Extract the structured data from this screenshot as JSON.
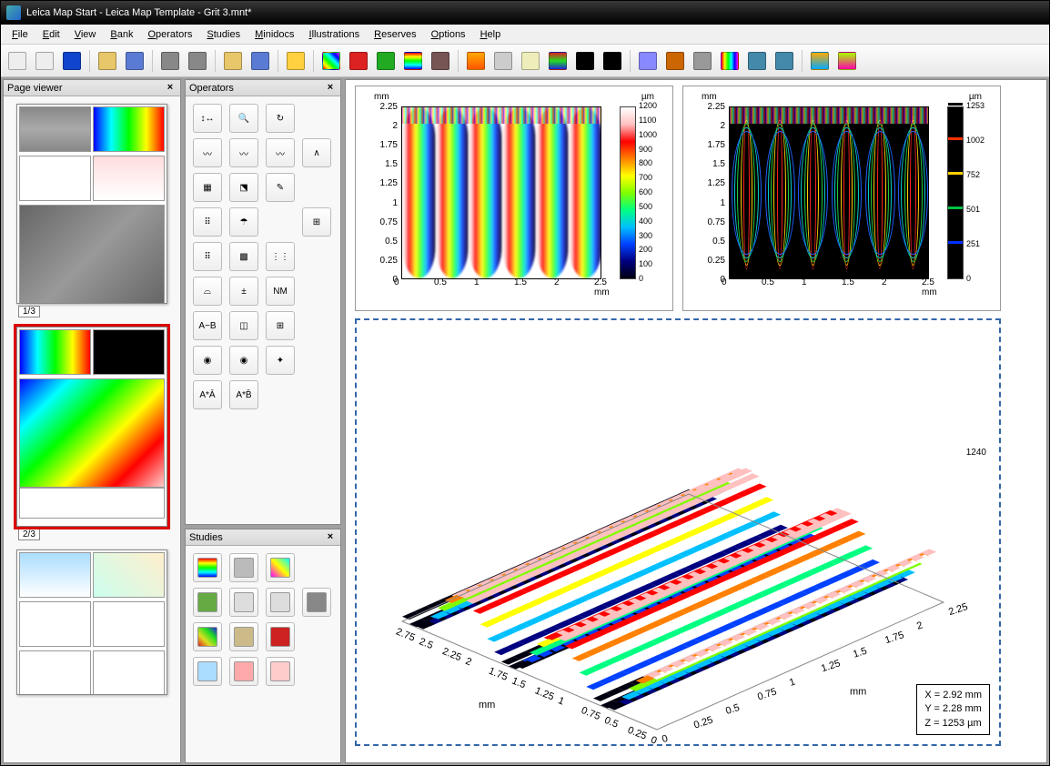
{
  "window": {
    "title": "Leica Map Start - Leica Map Template - Grit 3.mnt*"
  },
  "menu": [
    "File",
    "Edit",
    "View",
    "Bank",
    "Operators",
    "Studies",
    "Minidocs",
    "Illustrations",
    "Reserves",
    "Options",
    "Help"
  ],
  "toolbar_icons": [
    {
      "n": "new-doc",
      "c": "#eee"
    },
    {
      "n": "new-page",
      "c": "#eee"
    },
    {
      "n": "monitor",
      "c": "#14c"
    },
    null,
    {
      "n": "open",
      "c": "#e8c76a"
    },
    {
      "n": "save",
      "c": "#5a7bd4"
    },
    null,
    {
      "n": "print",
      "c": "#888"
    },
    {
      "n": "print-preview",
      "c": "#888"
    },
    null,
    {
      "n": "folder-a",
      "c": "#e8c76a"
    },
    {
      "n": "folder-b",
      "c": "#5a7bd4"
    },
    null,
    {
      "n": "help",
      "c": "#ffd040"
    },
    null,
    {
      "n": "palette",
      "c": "linear-gradient(45deg,#f00,#ff0,#0f0,#0ff,#00f,#f0f)"
    },
    {
      "n": "red-square",
      "c": "#d22"
    },
    {
      "n": "green-square",
      "c": "#2a2"
    },
    {
      "n": "rainbow-sq",
      "c": "linear-gradient(#f00,#ff0,#0f0,#0ff,#00f)"
    },
    {
      "n": "eye",
      "c": "#755"
    },
    null,
    {
      "n": "orange-sq",
      "c": "linear-gradient(#fa0,#f50)"
    },
    {
      "n": "diamond",
      "c": "#ccc"
    },
    {
      "n": "bulb",
      "c": "#eeb"
    },
    {
      "n": "3d-surf",
      "c": "linear-gradient(#d22,#2d2,#22d)"
    },
    {
      "n": "arrows-v",
      "c": "#000"
    },
    {
      "n": "crop",
      "c": "#000"
    },
    null,
    {
      "n": "gamma",
      "c": "#88f"
    },
    {
      "n": "bug",
      "c": "#c60"
    },
    {
      "n": "bars",
      "c": "#999"
    },
    {
      "n": "rainbow2",
      "c": "linear-gradient(90deg,#f00,#ff0,#0f0,#0ff,#00f,#f0f)"
    },
    {
      "n": "star",
      "c": "#48a"
    },
    {
      "n": "expand",
      "c": "#48a"
    },
    null,
    {
      "n": "tile-a",
      "c": "linear-gradient(#fa0,#0af)"
    },
    {
      "n": "tile-b",
      "c": "linear-gradient(#af0,#f0a)"
    }
  ],
  "panels": {
    "page_viewer": {
      "title": "Page viewer",
      "pages": [
        "1/3",
        "2/3",
        ""
      ]
    },
    "operators": {
      "title": "Operators",
      "items": [
        {
          "n": "scale",
          "t": "↕↔"
        },
        {
          "n": "zoom",
          "t": "🔍"
        },
        {
          "n": "rotate",
          "t": "↻"
        },
        {
          "n": "blank1",
          "t": ""
        },
        {
          "n": "wave1",
          "t": "〰"
        },
        {
          "n": "wave2",
          "t": "〰"
        },
        {
          "n": "wave3",
          "t": "〰"
        },
        {
          "n": "peak",
          "t": "∧"
        },
        {
          "n": "grid",
          "t": "▦"
        },
        {
          "n": "level",
          "t": "⬔"
        },
        {
          "n": "edit-surf",
          "t": "✎"
        },
        {
          "n": "blank2",
          "t": ""
        },
        {
          "n": "pts-a",
          "t": "⠿"
        },
        {
          "n": "mushroom",
          "t": "☂"
        },
        {
          "n": "blank3",
          "t": ""
        },
        {
          "n": "ruler",
          "t": "⊞"
        },
        {
          "n": "pts-b",
          "t": "⠿"
        },
        {
          "n": "texture",
          "t": "▩"
        },
        {
          "n": "dots",
          "t": "⋮⋮"
        },
        {
          "n": "blank4",
          "t": ""
        },
        {
          "n": "filter",
          "t": "⌓"
        },
        {
          "n": "plusminus",
          "t": "±"
        },
        {
          "n": "nm",
          "t": "NM"
        },
        {
          "n": "blank5",
          "t": ""
        },
        {
          "n": "a-minus-b",
          "t": "A−B"
        },
        {
          "n": "overlay",
          "t": "◫"
        },
        {
          "n": "tiles",
          "t": "⊞"
        },
        {
          "n": "blank6",
          "t": ""
        },
        {
          "n": "spot1",
          "t": "◉"
        },
        {
          "n": "spot2",
          "t": "◉"
        },
        {
          "n": "spot3",
          "t": "✦"
        },
        {
          "n": "blank7",
          "t": ""
        },
        {
          "n": "a-star-a",
          "t": "A*Ā"
        },
        {
          "n": "a-star-b",
          "t": "A*B̄"
        },
        {
          "n": "blank8",
          "t": ""
        },
        {
          "n": "blank9",
          "t": ""
        }
      ]
    },
    "studies": {
      "title": "Studies",
      "items": [
        {
          "n": "surf-rainbow",
          "c": "linear-gradient(#f00,#ff0,#0f0,#0ff,#00f)"
        },
        {
          "n": "grey3d",
          "c": "#bbb"
        },
        {
          "n": "contour",
          "c": "linear-gradient(45deg,#f0f,#ff0,#0ff)"
        },
        {
          "n": "blank",
          "c": "#fff"
        },
        {
          "n": "tree",
          "c": "#6a4"
        },
        {
          "n": "ruler2",
          "c": "#ddd"
        },
        {
          "n": "compass",
          "c": "#ddd"
        },
        {
          "n": "calc",
          "c": "#888"
        },
        {
          "n": "patches",
          "c": "linear-gradient(45deg,#d22,#dd2,#2d2,#22d)"
        },
        {
          "n": "beads",
          "c": "#cb8"
        },
        {
          "n": "net",
          "c": "#c22"
        },
        {
          "n": "blank2",
          "c": "#fff"
        },
        {
          "n": "fan",
          "c": "#adf"
        },
        {
          "n": "curves",
          "c": "#faa"
        },
        {
          "n": "spots",
          "c": "#fcc"
        },
        {
          "n": "blank3",
          "c": "#fff"
        },
        {
          "n": "pulse1",
          "c": "#fff"
        },
        {
          "n": "pulse2",
          "c": "#fff"
        },
        {
          "n": "pulse3",
          "c": "#fff"
        },
        {
          "n": "blank4",
          "c": "#fff"
        }
      ]
    }
  },
  "plot1": {
    "type": "heatmap",
    "x_unit": "mm",
    "y_unit": "mm",
    "z_unit": "µm",
    "x_ticks": [
      0,
      0.5,
      1,
      1.5,
      2,
      2.5
    ],
    "xmax_label": "2.5 mm",
    "y_ticks": [
      0,
      0.25,
      0.5,
      0.75,
      1,
      1.25,
      1.5,
      1.75,
      2,
      2.25
    ],
    "cb_ticks": [
      0,
      100,
      200,
      300,
      400,
      500,
      600,
      700,
      800,
      900,
      1000,
      1100,
      1200
    ],
    "colormap": [
      "#000010",
      "#000080",
      "#0040ff",
      "#00c0ff",
      "#00ff80",
      "#80ff00",
      "#ffff00",
      "#ff8000",
      "#ff0000",
      "#ffc0c0",
      "#ffffff"
    ],
    "ridges": 6
  },
  "plot2": {
    "type": "contour",
    "x_unit": "mm",
    "y_unit": "mm",
    "z_unit": "µm",
    "x_ticks": [
      0,
      0.5,
      1,
      1.5,
      2,
      2.5
    ],
    "xmax_label": "2.5 mm",
    "y_ticks": [
      0,
      0.25,
      0.5,
      0.75,
      1,
      1.25,
      1.5,
      1.75,
      2,
      2.25
    ],
    "cb_ticks": [
      0,
      251,
      501,
      752,
      1002,
      1253
    ],
    "cb_colors": [
      "#000000",
      "#0030ff",
      "#00c040",
      "#ffd000",
      "#ff3000",
      "#000000"
    ],
    "bg": "#000",
    "contour_colors": [
      "#ff2020",
      "#ffd000",
      "#20d040",
      "#00d0d0",
      "#2060ff"
    ],
    "ridges": 6
  },
  "plot3d": {
    "type": "3d-surface",
    "axis_unit": "mm",
    "x_ticks": [
      0,
      0.25,
      0.5,
      0.75,
      1,
      1.25,
      1.5,
      1.75,
      2,
      2.25,
      2.5,
      2.75
    ],
    "y_ticks": [
      0,
      0.25,
      0.5,
      0.75,
      1,
      1.25,
      1.5,
      1.75,
      2,
      2.25
    ],
    "z_label": "1240",
    "colormap": [
      "#000010",
      "#000080",
      "#0040ff",
      "#00c0ff",
      "#00ff80",
      "#80ff00",
      "#ffff00",
      "#ff8000",
      "#ff0000",
      "#ffc0c0",
      "#ffffff"
    ],
    "info": {
      "x": "X = 2.92 mm",
      "y": "Y = 2.28 mm",
      "z": "Z = 1253 µm"
    }
  }
}
